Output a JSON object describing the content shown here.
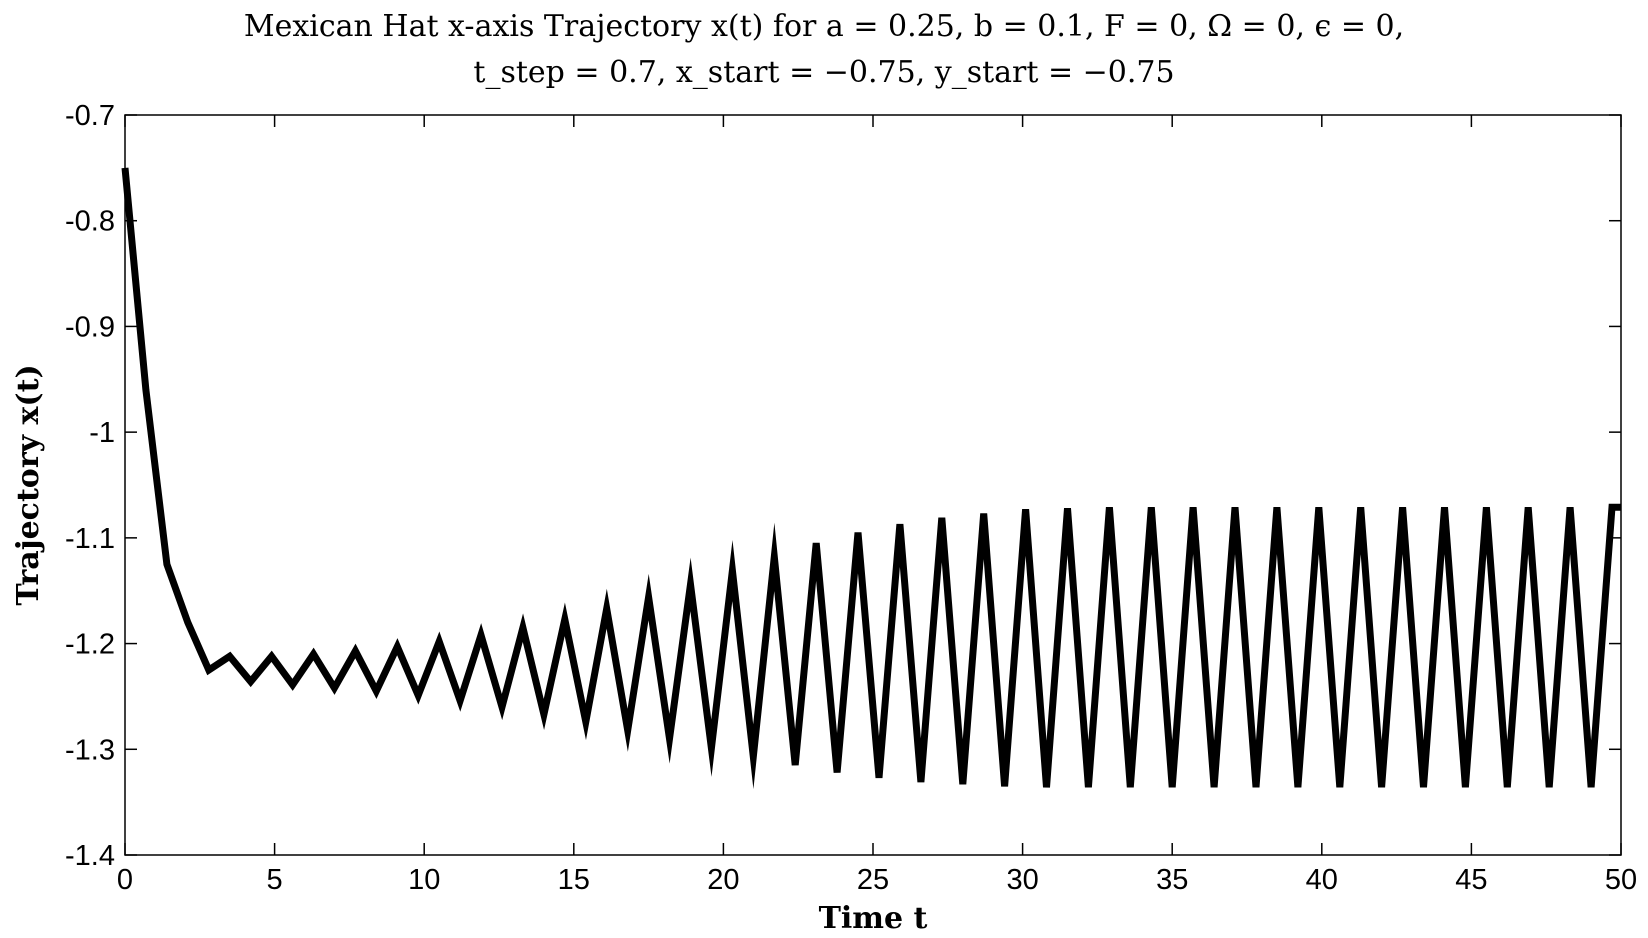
{
  "chart_data": {
    "type": "line",
    "title_line1": "Mexican Hat x-axis Trajectory x(t) for a = 0.25, b = 0.1, F = 0, Ω = 0, ϵ = 0,",
    "title_line2": "t_step = 0.7, x_start = −0.75, y_start = −0.75",
    "xlabel": "Time t",
    "ylabel": "Trajectory x(t)",
    "xlim": [
      0,
      50
    ],
    "ylim": [
      -1.4,
      -0.7
    ],
    "xticks": [
      "0",
      "5",
      "10",
      "15",
      "20",
      "25",
      "30",
      "35",
      "40",
      "45",
      "50"
    ],
    "yticks": [
      "-0.7",
      "-0.8",
      "-0.9",
      "-1",
      "-1.1",
      "-1.2",
      "-1.3",
      "-1.4"
    ],
    "grid": false,
    "line_color": "#000000",
    "x": [
      0,
      0.7,
      1.4,
      2.1,
      2.8,
      3.5,
      4.2,
      4.9,
      5.6,
      6.3,
      7.0,
      7.7,
      8.4,
      9.1,
      9.8,
      10.5,
      11.2,
      11.9,
      12.6,
      13.3,
      14.0,
      14.7,
      15.4,
      16.1,
      16.8,
      17.5,
      18.2,
      18.9,
      19.6,
      20.3,
      21.0,
      21.7,
      22.4,
      23.1,
      23.8,
      24.5,
      25.2,
      25.9,
      26.6,
      27.3,
      28.0,
      28.7,
      29.4,
      30.1,
      30.8,
      31.5,
      32.2,
      32.9,
      33.6,
      34.3,
      35.0,
      35.7,
      36.4,
      37.1,
      37.8,
      38.5,
      39.2,
      39.9,
      40.6,
      41.3,
      42.0,
      42.7,
      43.4,
      44.1,
      44.8,
      45.5,
      46.2,
      46.9,
      47.6,
      48.3,
      49.0,
      49.7,
      50.0
    ],
    "y": [
      -0.75,
      -0.96,
      -1.125,
      -1.18,
      -1.225,
      -1.212,
      -1.236,
      -1.212,
      -1.239,
      -1.21,
      -1.242,
      -1.207,
      -1.245,
      -1.203,
      -1.249,
      -1.198,
      -1.254,
      -1.192,
      -1.26,
      -1.185,
      -1.267,
      -1.177,
      -1.274,
      -1.167,
      -1.282,
      -1.156,
      -1.29,
      -1.144,
      -1.299,
      -1.131,
      -1.307,
      -1.118,
      -1.315,
      -1.105,
      -1.322,
      -1.095,
      -1.327,
      -1.087,
      -1.331,
      -1.081,
      -1.333,
      -1.077,
      -1.335,
      -1.073,
      -1.336,
      -1.072,
      -1.336,
      -1.071,
      -1.336,
      -1.071,
      -1.336,
      -1.071,
      -1.336,
      -1.071,
      -1.336,
      -1.071,
      -1.336,
      -1.071,
      -1.336,
      -1.071,
      -1.336,
      -1.071,
      -1.336,
      -1.071,
      -1.336,
      -1.071,
      -1.336,
      -1.071,
      -1.336,
      -1.071,
      -1.336,
      -1.071,
      -1.071
    ]
  }
}
